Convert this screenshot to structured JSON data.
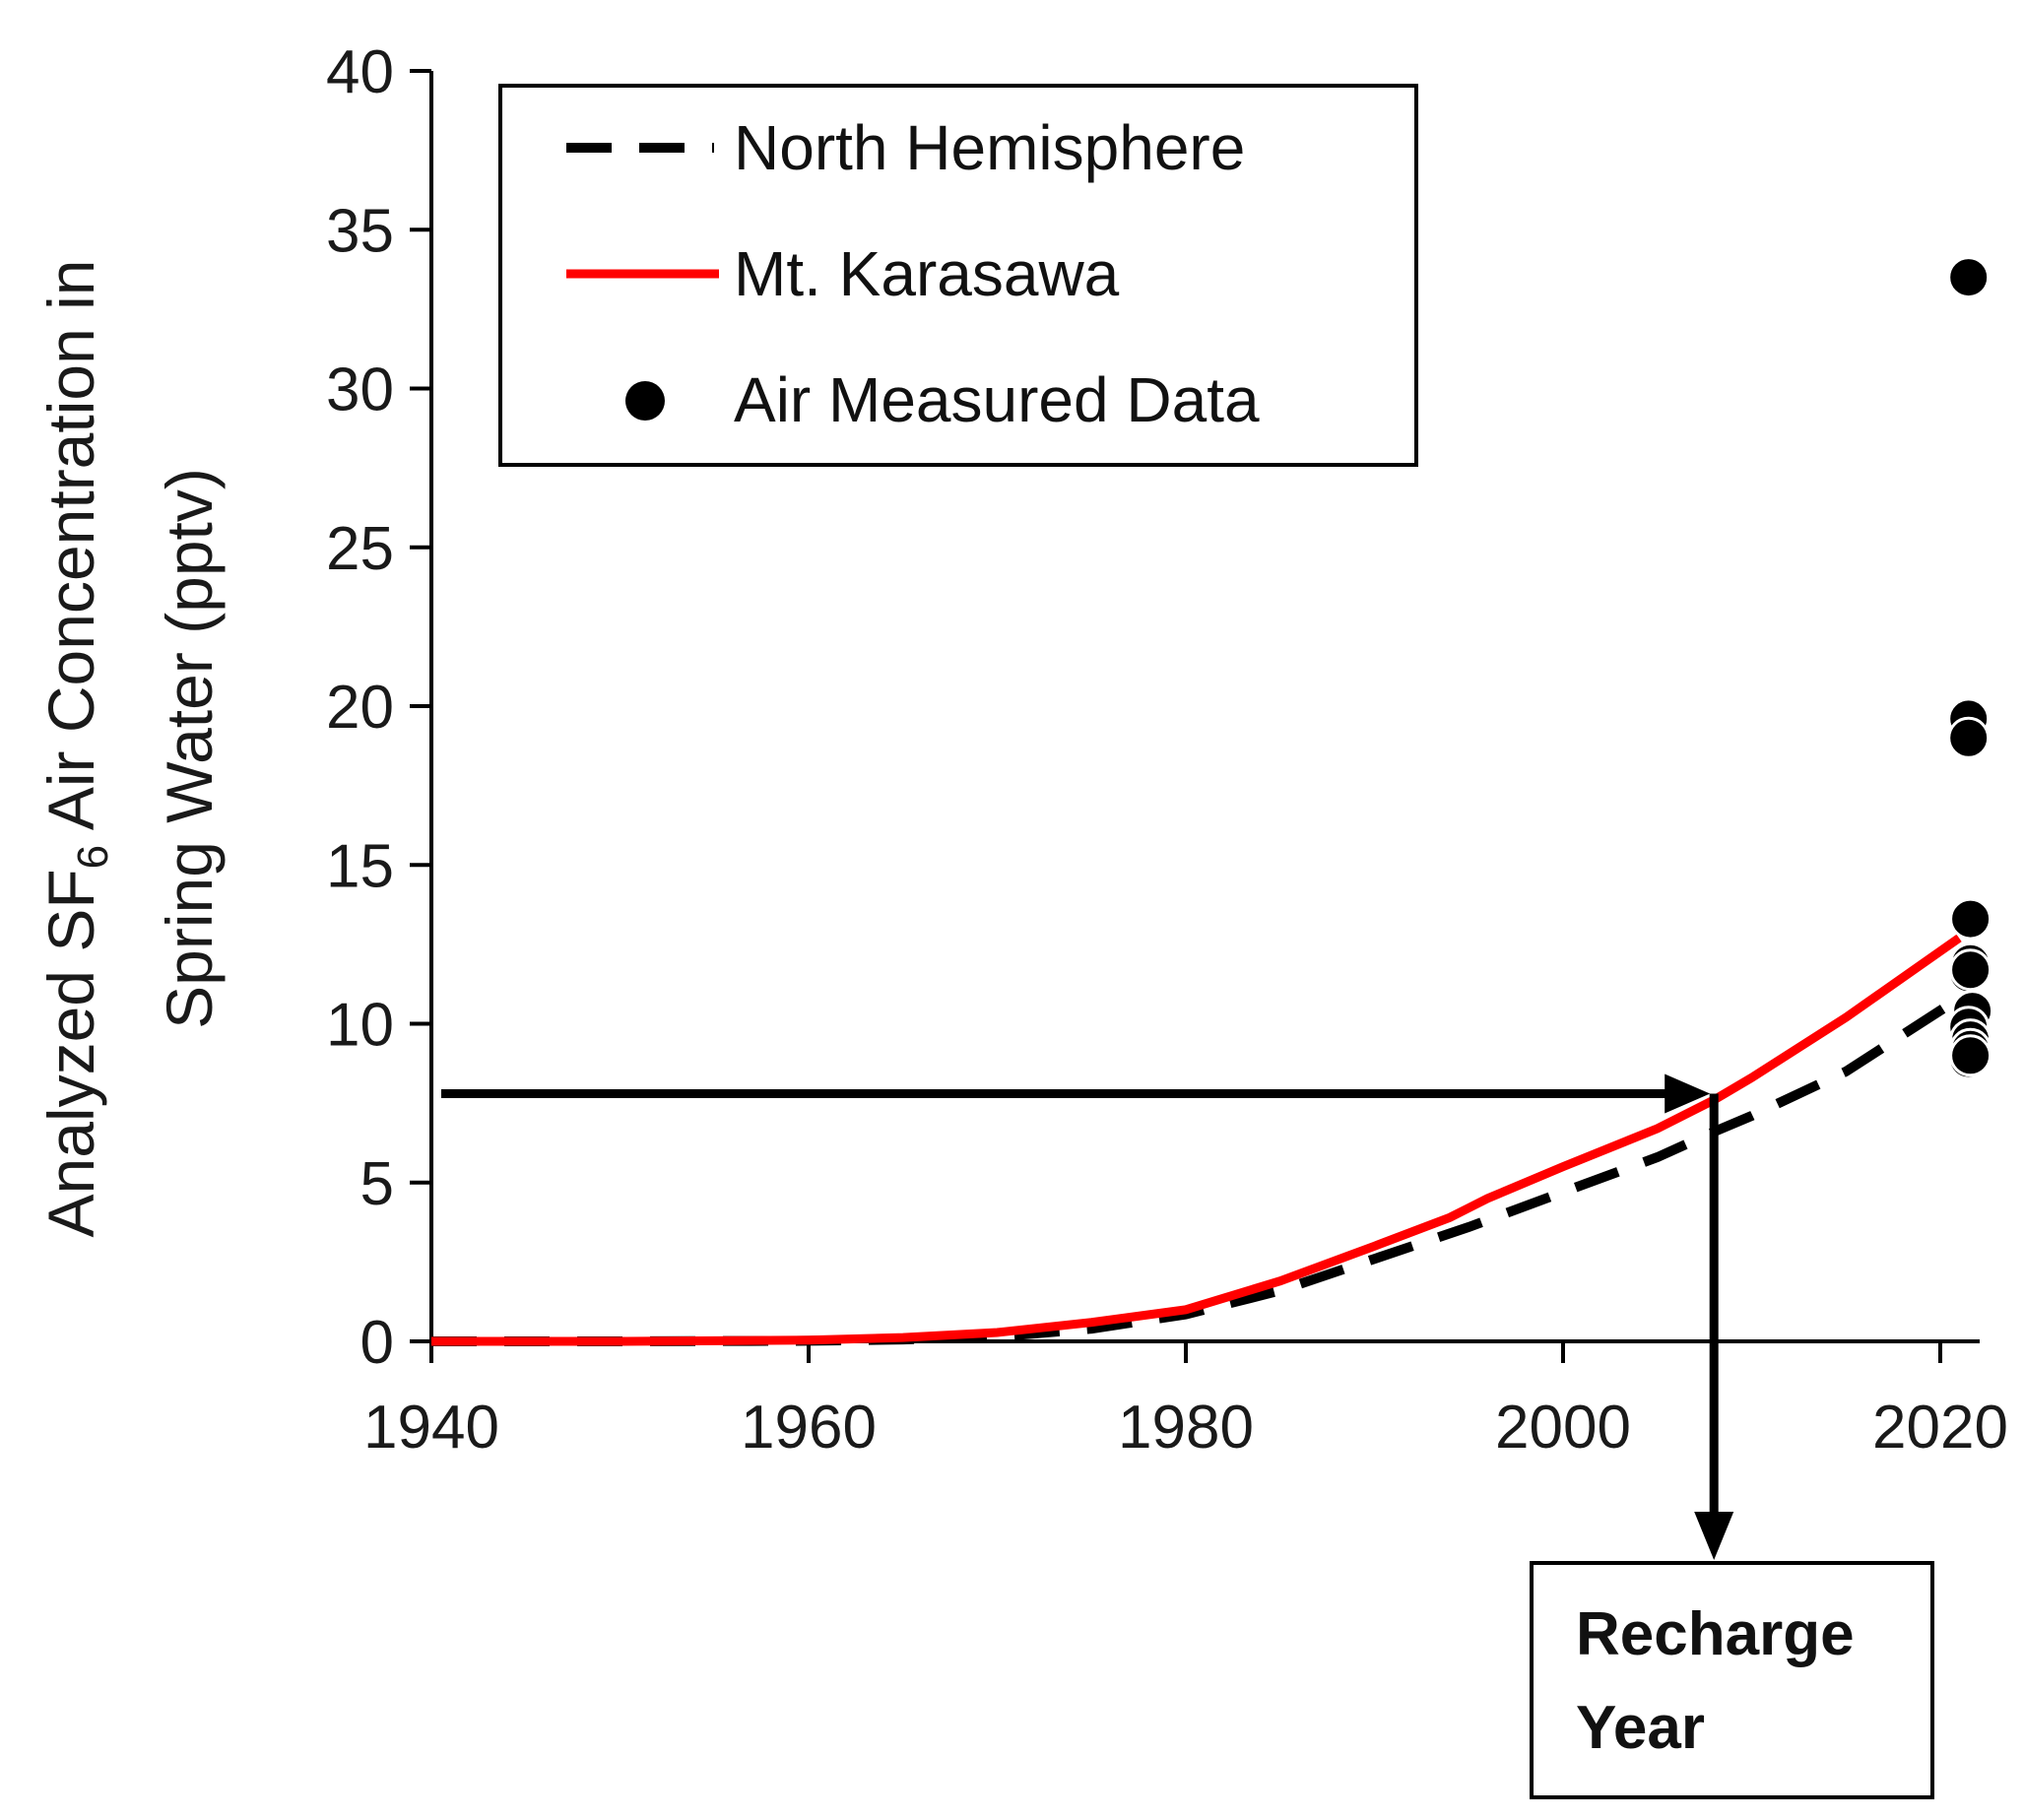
{
  "chart_data": {
    "type": "line",
    "title": "",
    "xlabel": "",
    "ylabel_line1": "Analyzed SF",
    "ylabel_sub": "6",
    "ylabel_line1_rest": " Air Concentration in",
    "ylabel_line2": "Spring Water (pptv)",
    "xlim": [
      1940,
      2022
    ],
    "ylim": [
      0,
      40
    ],
    "x_ticks": [
      1940,
      1960,
      1980,
      2000,
      2020
    ],
    "y_ticks": [
      0,
      5,
      10,
      15,
      20,
      25,
      30,
      35,
      40
    ],
    "x_tick_labels": [
      "1940",
      "1960",
      "1980",
      "2000",
      "2020"
    ],
    "y_tick_labels": [
      "0",
      "5",
      "10",
      "15",
      "20",
      "25",
      "30",
      "35",
      "40"
    ],
    "series": [
      {
        "name": "North Hemisphere",
        "style": "dashed",
        "color": "#000000",
        "x": [
          1940,
          1950,
          1960,
          1965,
          1970,
          1975,
          1980,
          1985,
          1990,
          1995,
          2000,
          2005,
          2008,
          2010,
          2015,
          2021
        ],
        "y": [
          0.0,
          0.0,
          0.02,
          0.06,
          0.15,
          0.4,
          0.85,
          1.6,
          2.6,
          3.6,
          4.7,
          5.8,
          6.6,
          7.1,
          8.5,
          10.8
        ]
      },
      {
        "name": "Mt. Karasawa",
        "style": "solid",
        "color": "#ff0000",
        "x": [
          1940,
          1950,
          1960,
          1965,
          1970,
          1975,
          1980,
          1985,
          1990,
          1994,
          1995,
          1996,
          2000,
          2005,
          2008,
          2010,
          2015,
          2021
        ],
        "y": [
          0.0,
          0.0,
          0.04,
          0.12,
          0.28,
          0.6,
          1.0,
          1.9,
          3.0,
          3.9,
          4.2,
          4.5,
          5.5,
          6.7,
          7.6,
          8.3,
          10.2,
          12.7
        ]
      },
      {
        "name": "Air Measured Data",
        "style": "markers",
        "color": "#000000",
        "x": [
          2021.5,
          2021.5,
          2021.5,
          2021.6,
          2021.6,
          2021.5,
          2021.6,
          2021.7,
          2021.5,
          2021.6,
          2021.6,
          2021.5,
          2021.6
        ],
        "y": [
          33.5,
          19.6,
          19.0,
          13.3,
          11.9,
          11.6,
          11.7,
          10.4,
          9.9,
          9.5,
          9.2,
          8.9,
          9.0
        ]
      }
    ],
    "legend": {
      "position": "top-left",
      "entries": [
        "North Hemisphere",
        "Mt. Karasawa",
        "Air Measured Data"
      ]
    },
    "annotation": {
      "concentration_value": 7.8,
      "recharge_year": 2008,
      "label_line1": "Recharge",
      "label_line2": "Year"
    }
  }
}
